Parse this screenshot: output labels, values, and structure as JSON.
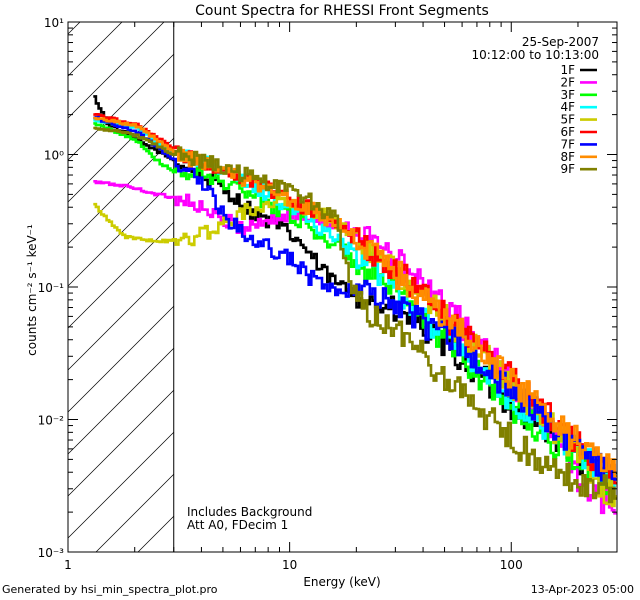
{
  "chart_data": {
    "type": "line",
    "title": "Count Spectra for RHESSI Front Segments",
    "xlabel": "Energy (keV)",
    "ylabel": "counts cm⁻² s⁻¹ keV⁻¹",
    "xscale": "log",
    "yscale": "log",
    "xlim": [
      1,
      300
    ],
    "ylim": [
      0.001,
      10
    ],
    "x_ticks": [
      {
        "v": 1,
        "label": "1"
      },
      {
        "v": 10,
        "label": "10"
      },
      {
        "v": 100,
        "label": "100"
      }
    ],
    "y_ticks": [
      {
        "v": 0.001,
        "label": "10⁻³"
      },
      {
        "v": 0.01,
        "label": "10⁻²"
      },
      {
        "v": 0.1,
        "label": "10⁻¹"
      },
      {
        "v": 1,
        "label": "10⁰"
      },
      {
        "v": 10,
        "label": "10¹"
      }
    ],
    "hatched_region": {
      "x_from": 1,
      "x_to": 3
    },
    "date": "25-Sep-2007",
    "time_range": "10:12:00 to 10:13:00",
    "notes": [
      "Includes Background",
      "Att A0, FDecim 1"
    ],
    "legend_position": "top-right",
    "series": [
      {
        "name": "1F",
        "color": "#000000",
        "points": [
          [
            1.3,
            2.7
          ],
          [
            1.5,
            1.7
          ],
          [
            2,
            1.3
          ],
          [
            3,
            0.9
          ],
          [
            5,
            0.55
          ],
          [
            7,
            0.35
          ],
          [
            9,
            0.28
          ],
          [
            11,
            0.22
          ],
          [
            14,
            0.13
          ],
          [
            17,
            0.1
          ],
          [
            20,
            0.09
          ],
          [
            26,
            0.07
          ],
          [
            33,
            0.06
          ],
          [
            45,
            0.04
          ],
          [
            60,
            0.028
          ],
          [
            80,
            0.018
          ],
          [
            110,
            0.011
          ],
          [
            150,
            0.008
          ],
          [
            200,
            0.005
          ],
          [
            260,
            0.0038
          ],
          [
            300,
            0.003
          ]
        ]
      },
      {
        "name": "2F",
        "color": "#ff00ff",
        "points": [
          [
            1.3,
            0.62
          ],
          [
            1.8,
            0.58
          ],
          [
            2.5,
            0.5
          ],
          [
            3.5,
            0.45
          ],
          [
            4.5,
            0.34
          ],
          [
            6,
            0.28
          ],
          [
            8,
            0.32
          ],
          [
            10,
            0.35
          ],
          [
            13,
            0.33
          ],
          [
            17,
            0.3
          ],
          [
            22,
            0.24
          ],
          [
            30,
            0.16
          ],
          [
            40,
            0.1
          ],
          [
            55,
            0.06
          ],
          [
            75,
            0.035
          ],
          [
            100,
            0.018
          ],
          [
            140,
            0.009
          ],
          [
            190,
            0.004
          ],
          [
            250,
            0.0025
          ],
          [
            300,
            0.0019
          ]
        ]
      },
      {
        "name": "3F",
        "color": "#00ff00",
        "points": [
          [
            1.3,
            1.7
          ],
          [
            2,
            1.3
          ],
          [
            2.5,
            0.9
          ],
          [
            3,
            0.72
          ],
          [
            4,
            0.7
          ],
          [
            5,
            0.62
          ],
          [
            7,
            0.48
          ],
          [
            10,
            0.35
          ],
          [
            13,
            0.26
          ],
          [
            17,
            0.19
          ],
          [
            22,
            0.13
          ],
          [
            30,
            0.085
          ],
          [
            40,
            0.055
          ],
          [
            55,
            0.034
          ],
          [
            75,
            0.02
          ],
          [
            100,
            0.012
          ],
          [
            140,
            0.0075
          ],
          [
            190,
            0.005
          ],
          [
            250,
            0.0035
          ],
          [
            300,
            0.003
          ]
        ]
      },
      {
        "name": "4F",
        "color": "#00ffff",
        "points": [
          [
            1.3,
            1.8
          ],
          [
            2,
            1.6
          ],
          [
            3,
            1.0
          ],
          [
            4,
            0.9
          ],
          [
            5,
            0.75
          ],
          [
            7,
            0.55
          ],
          [
            10,
            0.4
          ],
          [
            13,
            0.3
          ],
          [
            17,
            0.22
          ],
          [
            22,
            0.15
          ],
          [
            30,
            0.1
          ],
          [
            40,
            0.06
          ],
          [
            55,
            0.038
          ],
          [
            75,
            0.023
          ],
          [
            100,
            0.014
          ],
          [
            140,
            0.009
          ],
          [
            190,
            0.006
          ],
          [
            250,
            0.004
          ],
          [
            300,
            0.0032
          ]
        ]
      },
      {
        "name": "5F",
        "color": "#cccc00",
        "points": [
          [
            1.3,
            0.42
          ],
          [
            1.5,
            0.32
          ],
          [
            1.8,
            0.24
          ],
          [
            2.5,
            0.22
          ],
          [
            3.5,
            0.23
          ],
          [
            5,
            0.3
          ],
          [
            6.5,
            0.38
          ],
          [
            8,
            0.45
          ],
          [
            10,
            0.43
          ],
          [
            13,
            0.38
          ],
          [
            17,
            0.3
          ],
          [
            22,
            0.2
          ],
          [
            30,
            0.13
          ],
          [
            40,
            0.08
          ],
          [
            55,
            0.05
          ],
          [
            75,
            0.03
          ],
          [
            100,
            0.017
          ],
          [
            140,
            0.01
          ],
          [
            190,
            0.006
          ],
          [
            250,
            0.0032
          ],
          [
            300,
            0.0025
          ]
        ]
      },
      {
        "name": "6F",
        "color": "#ff0000",
        "points": [
          [
            1.3,
            2.0
          ],
          [
            2,
            1.7
          ],
          [
            3,
            1.1
          ],
          [
            4,
            0.85
          ],
          [
            5,
            0.75
          ],
          [
            7,
            0.6
          ],
          [
            9,
            0.5
          ],
          [
            11,
            0.42
          ],
          [
            14,
            0.34
          ],
          [
            18,
            0.26
          ],
          [
            24,
            0.18
          ],
          [
            32,
            0.12
          ],
          [
            42,
            0.08
          ],
          [
            57,
            0.05
          ],
          [
            77,
            0.031
          ],
          [
            100,
            0.02
          ],
          [
            140,
            0.012
          ],
          [
            190,
            0.007
          ],
          [
            250,
            0.0045
          ],
          [
            300,
            0.0035
          ]
        ]
      },
      {
        "name": "7F",
        "color": "#0000ff",
        "points": [
          [
            1.3,
            1.9
          ],
          [
            2,
            1.5
          ],
          [
            3,
            0.9
          ],
          [
            4,
            0.6
          ],
          [
            5,
            0.35
          ],
          [
            6,
            0.26
          ],
          [
            7,
            0.22
          ],
          [
            8,
            0.2
          ],
          [
            10,
            0.16
          ],
          [
            12,
            0.12
          ],
          [
            15,
            0.1
          ],
          [
            20,
            0.09
          ],
          [
            26,
            0.08
          ],
          [
            35,
            0.06
          ],
          [
            47,
            0.045
          ],
          [
            62,
            0.035
          ],
          [
            82,
            0.022
          ],
          [
            110,
            0.015
          ],
          [
            150,
            0.009
          ],
          [
            200,
            0.006
          ],
          [
            260,
            0.004
          ],
          [
            300,
            0.0035
          ]
        ]
      },
      {
        "name": "8F",
        "color": "#ff8c00",
        "points": [
          [
            1.3,
            1.9
          ],
          [
            2,
            1.65
          ],
          [
            3,
            1.05
          ],
          [
            4,
            0.85
          ],
          [
            5,
            0.75
          ],
          [
            7,
            0.6
          ],
          [
            9,
            0.5
          ],
          [
            12,
            0.4
          ],
          [
            16,
            0.3
          ],
          [
            21,
            0.21
          ],
          [
            28,
            0.14
          ],
          [
            38,
            0.09
          ],
          [
            52,
            0.055
          ],
          [
            70,
            0.034
          ],
          [
            95,
            0.021
          ],
          [
            130,
            0.013
          ],
          [
            180,
            0.008
          ],
          [
            240,
            0.005
          ],
          [
            300,
            0.004
          ]
        ]
      },
      {
        "name": "9F",
        "color": "#808000",
        "points": [
          [
            1.3,
            1.6
          ],
          [
            2,
            1.4
          ],
          [
            3,
            1.0
          ],
          [
            4,
            0.9
          ],
          [
            5,
            0.78
          ],
          [
            7,
            0.65
          ],
          [
            9,
            0.55
          ],
          [
            12,
            0.45
          ],
          [
            16,
            0.32
          ],
          [
            19,
            0.1
          ],
          [
            22,
            0.06
          ],
          [
            25,
            0.055
          ],
          [
            30,
            0.045
          ],
          [
            40,
            0.03
          ],
          [
            55,
            0.018
          ],
          [
            75,
            0.011
          ],
          [
            100,
            0.007
          ],
          [
            140,
            0.0045
          ],
          [
            190,
            0.0035
          ],
          [
            250,
            0.003
          ],
          [
            300,
            0.0028
          ]
        ]
      }
    ]
  },
  "footer": {
    "left": "Generated by hsi_min_spectra_plot.pro",
    "right": "13-Apr-2023 05:00"
  }
}
